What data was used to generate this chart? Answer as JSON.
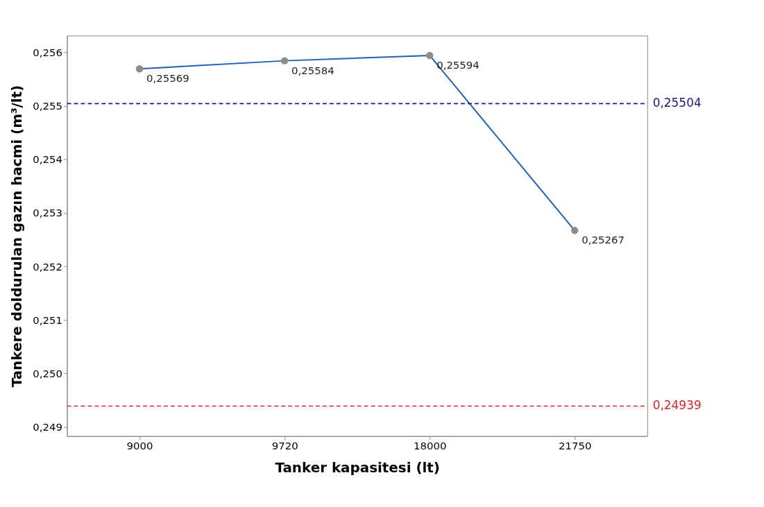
{
  "chart_data": {
    "type": "line",
    "xlabel": "Tanker kapasitesi (lt)",
    "ylabel": "Tankere doldurulan gazın hacmi (m³/lt)",
    "categories": [
      "9000",
      "9720",
      "18000",
      "21750"
    ],
    "series": [
      {
        "color": "#1f5fb4",
        "values": [
          0.25569,
          0.25584,
          0.25594,
          0.25267
        ],
        "value_labels": [
          "0,25569",
          "0,25584",
          "0,25594",
          "0,25267"
        ]
      }
    ],
    "marker": "circle",
    "line_style": "solid",
    "grid": false,
    "ylim": [
      0.24883,
      0.25631
    ],
    "yticks": [
      {
        "value": 0.249,
        "label": "0,249"
      },
      {
        "value": 0.25,
        "label": "0,250"
      },
      {
        "value": 0.251,
        "label": "0,251"
      },
      {
        "value": 0.252,
        "label": "0,252"
      },
      {
        "value": 0.253,
        "label": "0,253"
      },
      {
        "value": 0.254,
        "label": "0,254"
      },
      {
        "value": 0.255,
        "label": "0,255"
      },
      {
        "value": 0.256,
        "label": "0,256"
      }
    ],
    "ref_lines": [
      {
        "axis": "y",
        "value": 0.25504,
        "label": "0,25504",
        "color": "#1a1a80",
        "line_style": "dashed"
      },
      {
        "axis": "y",
        "value": 0.24939,
        "label": "0,24939",
        "color": "#d62728",
        "line_style": "dashed"
      }
    ]
  }
}
